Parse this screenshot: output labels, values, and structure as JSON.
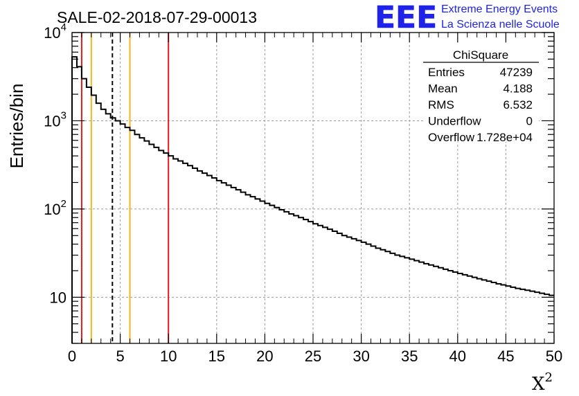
{
  "header": {
    "title": "SALE-02-2018-07-29-00013",
    "logo_letters": "EEE",
    "logo_line1": "Extreme Energy Events",
    "logo_line2": "La Scienza nelle Scuole"
  },
  "stats_box": {
    "title": "ChiSquare",
    "rows": [
      {
        "label": "Entries",
        "value": "47239"
      },
      {
        "label": "Mean",
        "value": "4.188"
      },
      {
        "label": "RMS",
        "value": "6.532"
      },
      {
        "label": "Underflow",
        "value": "0"
      },
      {
        "label": "Overflow",
        "value": "1.728e+04"
      }
    ]
  },
  "chart_data": {
    "type": "histogram",
    "title": "SALE-02-2018-07-29-00013",
    "xlabel": "X",
    "xlabel_superscript": "2",
    "ylabel": "Entries/bin",
    "xlim": [
      0,
      50
    ],
    "ylim": [
      3,
      10000
    ],
    "yscale": "log",
    "grid": true,
    "bin_width": 0.5,
    "x_ticks": [
      0,
      5,
      10,
      15,
      20,
      25,
      30,
      35,
      40,
      45,
      50
    ],
    "x_tick_labels": [
      "0",
      "5",
      "10",
      "15",
      "20",
      "25",
      "30",
      "35",
      "40",
      "45",
      "50"
    ],
    "y_tick_labels": [
      {
        "value": 10,
        "base": "10",
        "exp": ""
      },
      {
        "value": 100,
        "base": "10",
        "exp": "2"
      },
      {
        "value": 1000,
        "base": "10",
        "exp": "3"
      },
      {
        "value": 10000,
        "base": "10",
        "exp": "4"
      }
    ],
    "values": [
      5300,
      4100,
      3000,
      2400,
      1950,
      1580,
      1350,
      1200,
      1080,
      1000,
      920,
      840,
      780,
      700,
      640,
      590,
      540,
      500,
      460,
      430,
      400,
      370,
      350,
      330,
      310,
      290,
      270,
      255,
      240,
      225,
      210,
      198,
      186,
      175,
      165,
      155,
      145,
      138,
      130,
      123,
      116,
      110,
      104,
      98,
      93,
      88,
      84,
      80,
      76,
      72,
      68,
      65,
      62,
      59,
      56,
      53,
      50,
      48,
      46,
      44,
      42,
      40,
      38,
      36,
      34.5,
      33,
      31.5,
      30,
      29,
      28,
      27,
      26,
      25,
      24,
      23.2,
      22.4,
      21.6,
      20.8,
      20,
      19.3,
      18.6,
      18,
      17.4,
      16.8,
      16.2,
      15.7,
      15.2,
      14.7,
      14.2,
      13.8,
      13.4,
      13,
      12.6,
      12.3,
      12,
      11.7,
      11.4,
      11.1,
      10.8,
      10.5
    ],
    "vertical_lines": [
      {
        "x": 1,
        "color": "#e0191b",
        "style": "solid"
      },
      {
        "x": 2,
        "color": "#f5b51b",
        "style": "solid"
      },
      {
        "x": 4.188,
        "color": "#000000",
        "style": "dashed"
      },
      {
        "x": 6,
        "color": "#f5b51b",
        "style": "solid"
      },
      {
        "x": 10,
        "color": "#e0191b",
        "style": "solid"
      }
    ],
    "colors": {
      "histogram": "#000000",
      "grid": "#9a9a9a"
    }
  }
}
